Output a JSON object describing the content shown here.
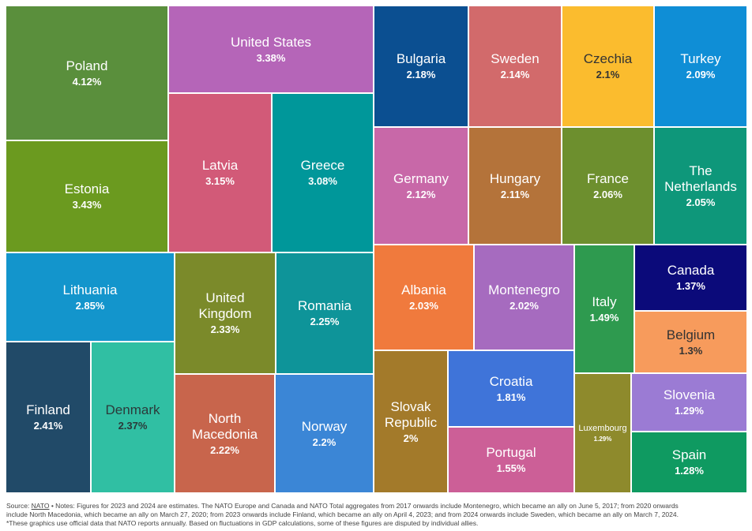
{
  "chart_data": {
    "type": "treemap",
    "title": "",
    "unit": "%",
    "items": [
      {
        "name": "Poland",
        "value": 4.12,
        "label": "4.12%",
        "color": "#5a8f3c"
      },
      {
        "name": "Estonia",
        "value": 3.43,
        "label": "3.43%",
        "color": "#6b9a1f"
      },
      {
        "name": "United States",
        "value": 3.38,
        "label": "3.38%",
        "color": "#b565b8"
      },
      {
        "name": "Latvia",
        "value": 3.15,
        "label": "3.15%",
        "color": "#d25a78"
      },
      {
        "name": "Greece",
        "value": 3.08,
        "label": "3.08%",
        "color": "#00979a"
      },
      {
        "name": "Lithuania",
        "value": 2.85,
        "label": "2.85%",
        "color": "#1395cc"
      },
      {
        "name": "Finland",
        "value": 2.41,
        "label": "2.41%",
        "color": "#214a68"
      },
      {
        "name": "Denmark",
        "value": 2.37,
        "label": "2.37%",
        "color": "#30bfa3"
      },
      {
        "name": "United Kingdom",
        "value": 2.33,
        "label": "2.33%",
        "color": "#7b8a2a"
      },
      {
        "name": "Romania",
        "value": 2.25,
        "label": "2.25%",
        "color": "#0e9499"
      },
      {
        "name": "North Macedonia",
        "value": 2.22,
        "label": "2.22%",
        "color": "#c8654c"
      },
      {
        "name": "Norway",
        "value": 2.2,
        "label": "2.2%",
        "color": "#3b86d6"
      },
      {
        "name": "Bulgaria",
        "value": 2.18,
        "label": "2.18%",
        "color": "#0b4f91"
      },
      {
        "name": "Sweden",
        "value": 2.14,
        "label": "2.14%",
        "color": "#d26a6b"
      },
      {
        "name": "Czechia",
        "value": 2.1,
        "label": "2.1%",
        "color": "#fbbc2e"
      },
      {
        "name": "Turkey",
        "value": 2.09,
        "label": "2.09%",
        "color": "#0f8ed6"
      },
      {
        "name": "Germany",
        "value": 2.12,
        "label": "2.12%",
        "color": "#c868a8"
      },
      {
        "name": "Hungary",
        "value": 2.11,
        "label": "2.11%",
        "color": "#b4733a"
      },
      {
        "name": "France",
        "value": 2.06,
        "label": "2.06%",
        "color": "#6d8f2e"
      },
      {
        "name": "The Netherlands",
        "value": 2.05,
        "label": "2.05%",
        "color": "#0e977a"
      },
      {
        "name": "Albania",
        "value": 2.03,
        "label": "2.03%",
        "color": "#f07a3d"
      },
      {
        "name": "Montenegro",
        "value": 2.02,
        "label": "2.02%",
        "color": "#a66bbf"
      },
      {
        "name": "Italy",
        "value": 1.49,
        "label": "1.49%",
        "color": "#2e9a4f"
      },
      {
        "name": "Canada",
        "value": 1.37,
        "label": "1.37%",
        "color": "#0b0a7a"
      },
      {
        "name": "Belgium",
        "value": 1.3,
        "label": "1.3%",
        "color": "#f79b5c"
      },
      {
        "name": "Slovak Republic",
        "value": 2,
        "label": "2%",
        "color": "#a37a2a"
      },
      {
        "name": "Croatia",
        "value": 1.81,
        "label": "1.81%",
        "color": "#3f74d9"
      },
      {
        "name": "Portugal",
        "value": 1.55,
        "label": "1.55%",
        "color": "#cc5f97"
      },
      {
        "name": "Luxembourg",
        "value": 1.29,
        "label": "1.29%",
        "color": "#8e8a2c"
      },
      {
        "name": "Slovenia",
        "value": 1.29,
        "label": "1.29%",
        "color": "#9b7bd4"
      },
      {
        "name": "Spain",
        "value": 1.28,
        "label": "1.28%",
        "color": "#0f9a61"
      }
    ]
  },
  "notes": {
    "source_prefix": "Source: ",
    "source_link": "NATO",
    "line1": " • Notes: Figures for 2023 and 2024 are estimates. The NATO Europe and Canada and NATO Total aggregates from 2017 onwards include Montenegro, which became an ally on June 5, 2017; from 2020 onwards",
    "line2": "include North Macedonia, which became an ally on March 27, 2020; from 2023 onwards include Finland, which became an ally on April 4, 2023; and from 2024 onwards include Sweden, which became an ally on March 7, 2024.",
    "line3": "*These graphics use official data that NATO reports annually. Based on fluctuations in GDP calculations, some of these figures are disputed by individual allies."
  }
}
